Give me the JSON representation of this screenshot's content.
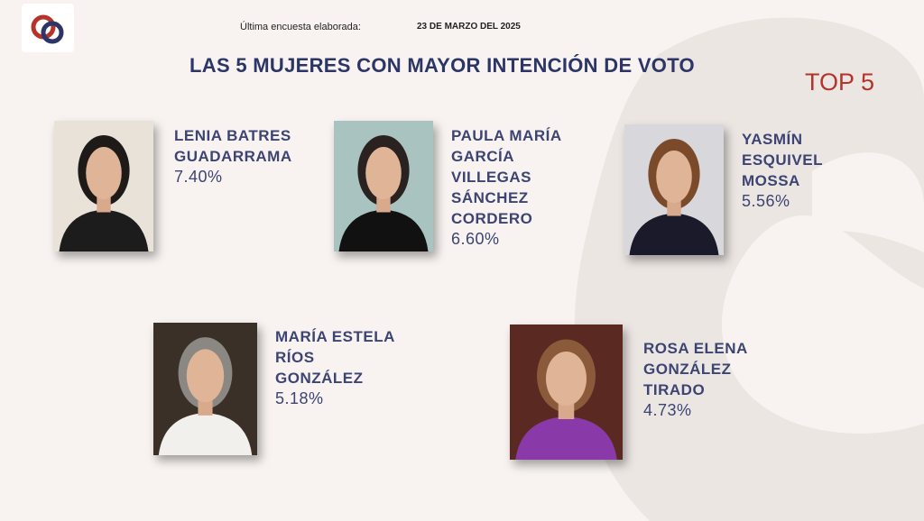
{
  "header": {
    "survey_label": "Última encuesta elaborada:",
    "survey_date": "23 DE MARZO DEL 2025",
    "title": "LAS 5 MUJERES CON MAYOR INTENCIÓN DE VOTO",
    "badge": "TOP 5"
  },
  "candidates": [
    {
      "name_lines": [
        "LENIA BATRES",
        "GUADARRAMA"
      ],
      "percent": "7.40%"
    },
    {
      "name_lines": [
        "PAULA MARÍA",
        "GARCÍA",
        "VILLEGAS",
        "SÁNCHEZ",
        "CORDERO"
      ],
      "percent": "6.60%"
    },
    {
      "name_lines": [
        "YASMÍN",
        "ESQUIVEL",
        "MOSSA"
      ],
      "percent": "5.56%"
    },
    {
      "name_lines": [
        "MARÍA ESTELA",
        "RÍOS",
        "GONZÁLEZ"
      ],
      "percent": "5.18%"
    },
    {
      "name_lines": [
        "ROSA ELENA",
        "GONZÁLEZ",
        "TIRADO"
      ],
      "percent": "4.73%"
    }
  ]
}
